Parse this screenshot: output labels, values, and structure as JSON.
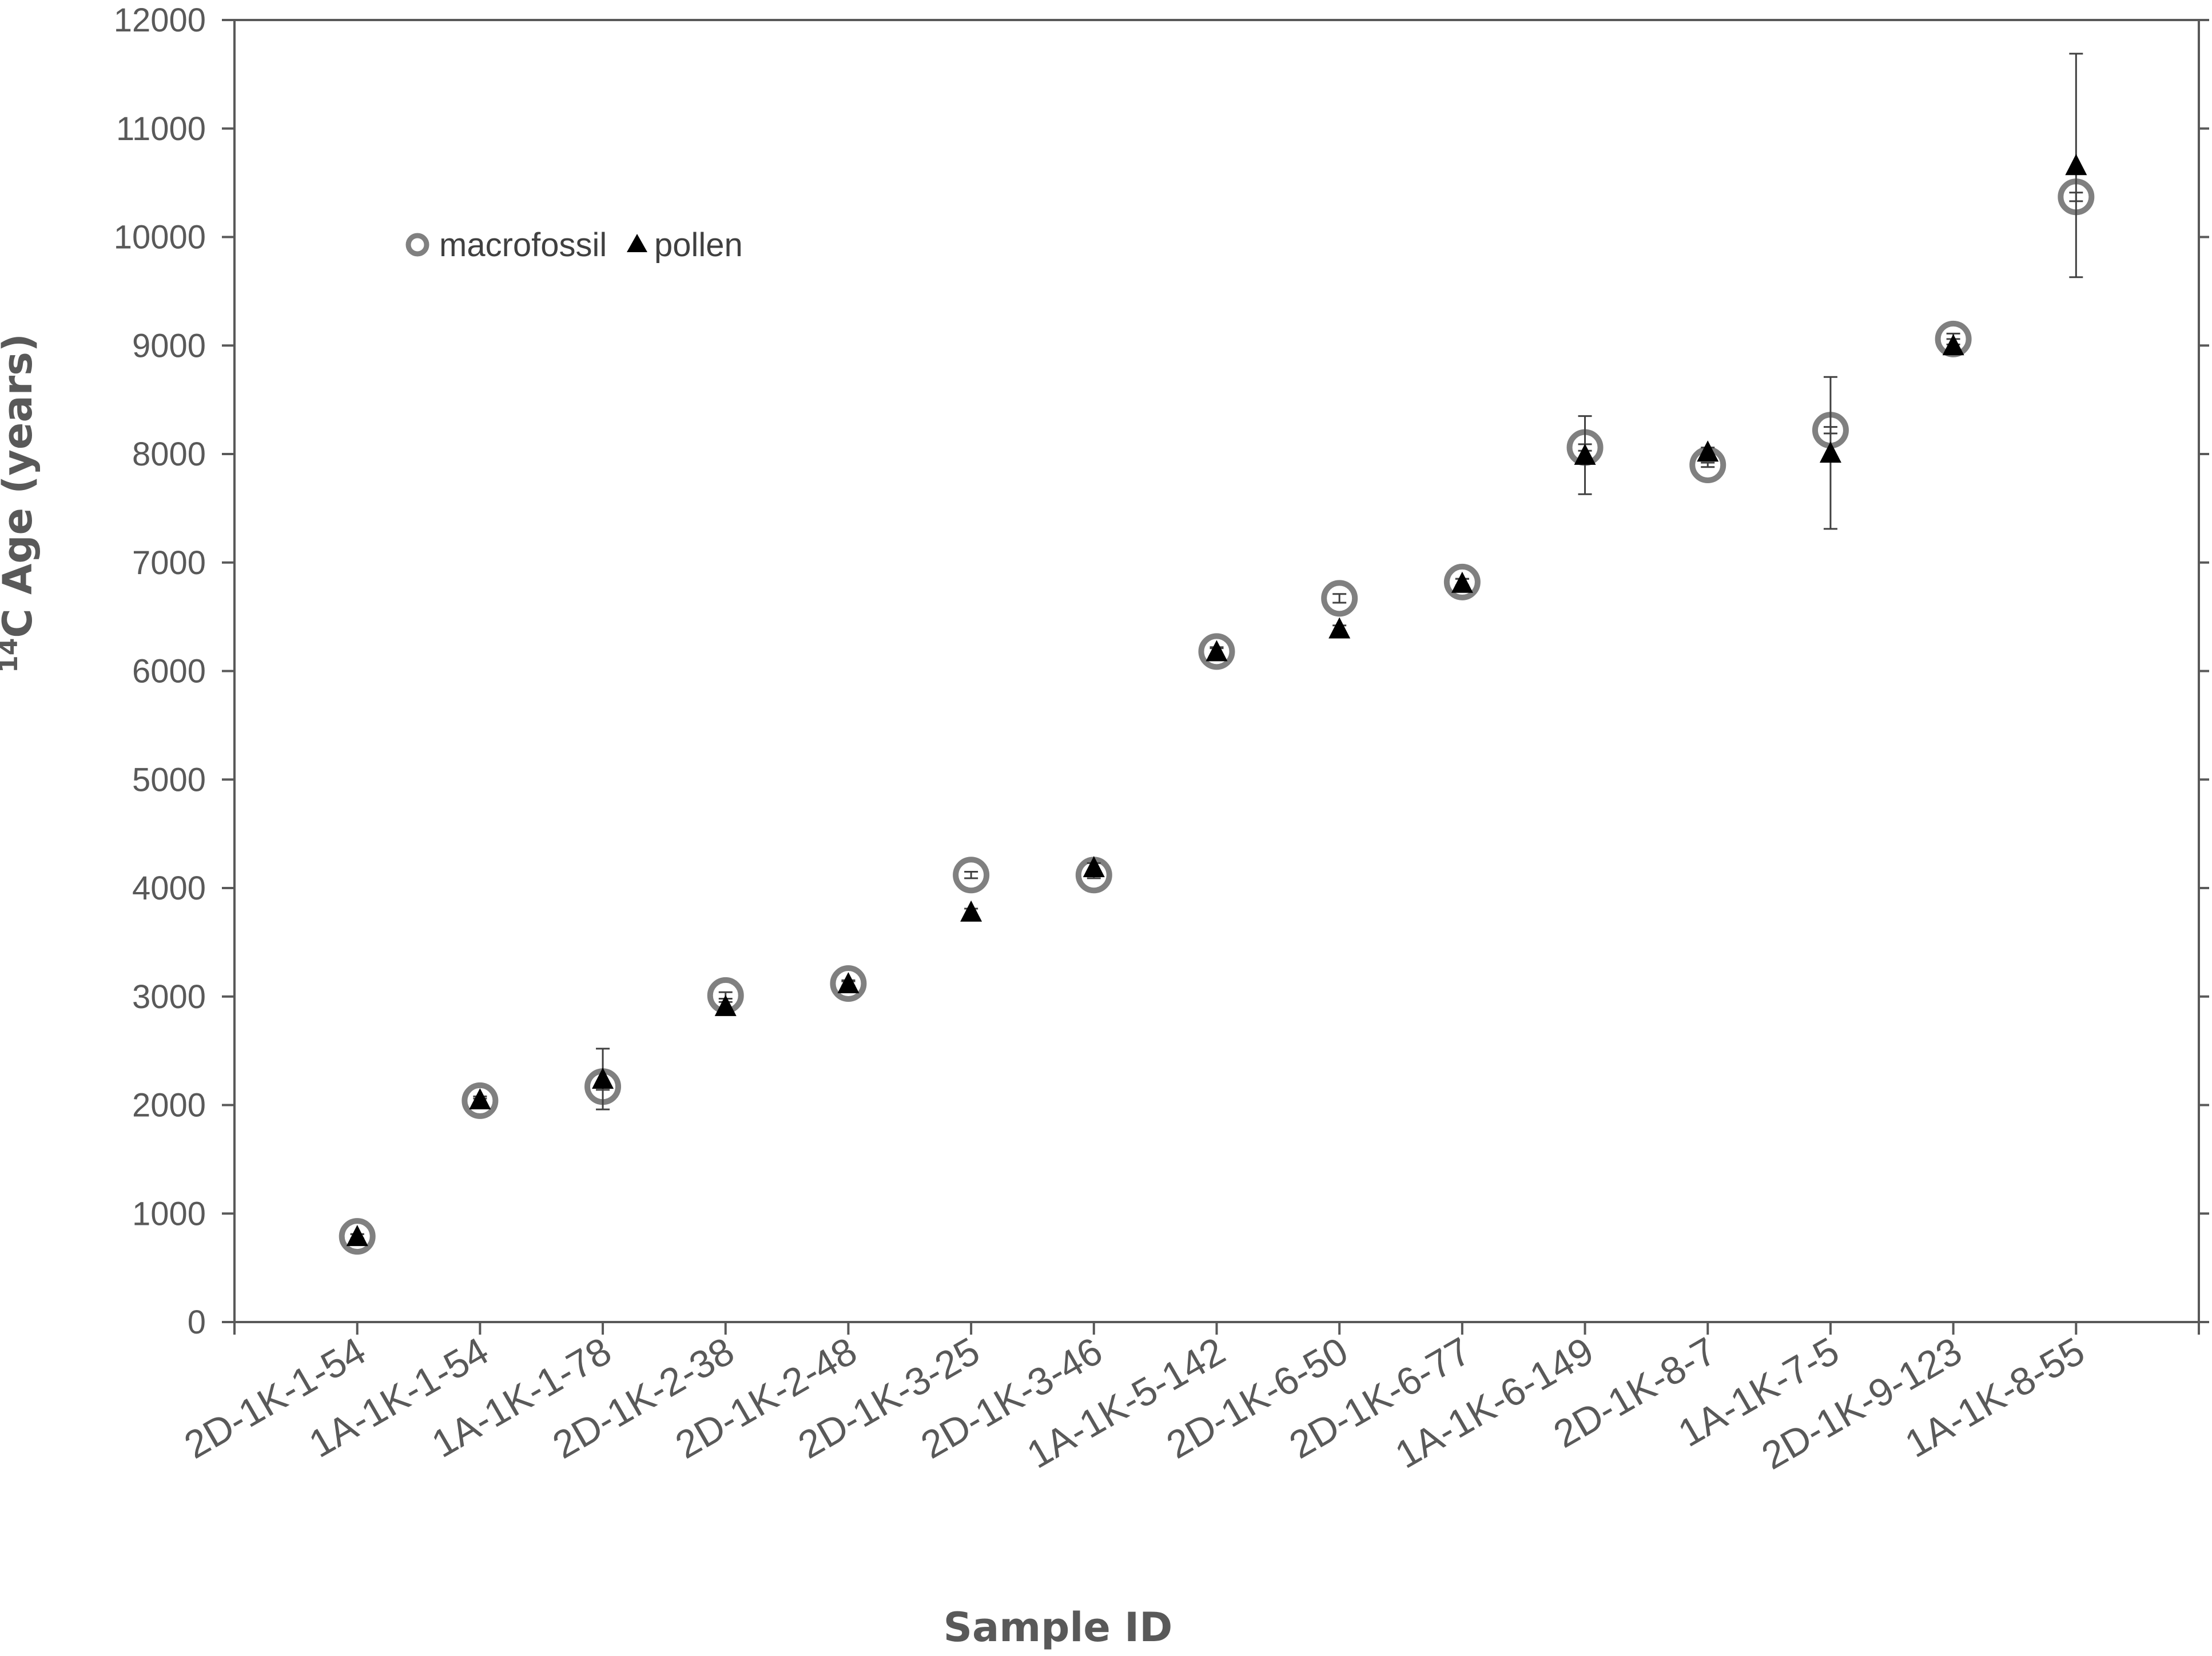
{
  "chart_data": {
    "type": "scatter",
    "xlabel": "Sample ID",
    "ylabel_sup": "14",
    "ylabel_main": "C Age (years)",
    "ylim": [
      0,
      12000
    ],
    "yticks": [
      0,
      1000,
      2000,
      3000,
      4000,
      5000,
      6000,
      7000,
      8000,
      9000,
      10000,
      11000,
      12000
    ],
    "grid": false,
    "legend_position": "top-left",
    "categories": [
      "2D-1K-1-54",
      "1A-1K-1-54",
      "1A-1K-1-78",
      "2D-1K-2-38",
      "2D-1K-2-48",
      "2D-1K-3-25",
      "2D-1K-3-46",
      "1A-1K-5-142",
      "2D-1K-6-50",
      "2D-1K-6-77",
      "1A-1K-6-149",
      "2D-1K-8-7",
      "1A-1K-7-5",
      "2D-1K-9-123",
      "1A-1K-8-55"
    ],
    "series": [
      {
        "name": "macrofossil",
        "marker": "open-circle",
        "color": "#808080",
        "values": [
          790,
          2040,
          2170,
          3010,
          3120,
          4120,
          4120,
          6180,
          6670,
          6820,
          8060,
          7900,
          8220,
          9060,
          10370
        ],
        "errors": [
          20,
          20,
          30,
          30,
          20,
          30,
          30,
          30,
          40,
          30,
          30,
          20,
          30,
          50,
          40
        ]
      },
      {
        "name": "pollen",
        "marker": "filled-triangle",
        "color": "#000000",
        "values": [
          790,
          2050,
          2240,
          2910,
          3120,
          3780,
          4190,
          6180,
          6390,
          6810,
          7990,
          8020,
          8010,
          9000,
          10660
        ],
        "errors": [
          20,
          30,
          280,
          40,
          30,
          30,
          40,
          40,
          30,
          40,
          360,
          40,
          700,
          60,
          1030
        ]
      }
    ]
  }
}
